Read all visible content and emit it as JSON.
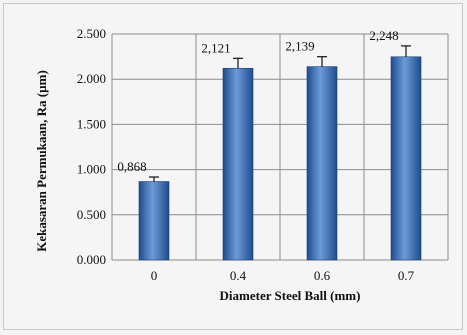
{
  "chart_data": {
    "type": "bar",
    "categories": [
      "0",
      "0.4",
      "0.6",
      "0.7"
    ],
    "values": [
      0.868,
      2.121,
      2.139,
      2.248
    ],
    "data_labels": [
      "0,868",
      "2,121",
      "2,139",
      "2,248"
    ],
    "error_plus": [
      0.05,
      0.11,
      0.11,
      0.12
    ],
    "xlabel": "Diameter Steel Ball (mm)",
    "ylabel": "Kekasaran Permukaan, Ra (µm)",
    "ylim": [
      0,
      2.5
    ],
    "yticks": [
      0,
      0.5,
      1.0,
      1.5,
      2.0,
      2.5
    ],
    "ytick_labels": [
      "0.000",
      "0.500",
      "1.000",
      "1.500",
      "2.000",
      "2.500"
    ],
    "grid": true,
    "legend": "none",
    "bar_color": "#2f5fa8",
    "bar_highlight": "#6e9bd8",
    "grid_color": "#8c8c8c"
  }
}
